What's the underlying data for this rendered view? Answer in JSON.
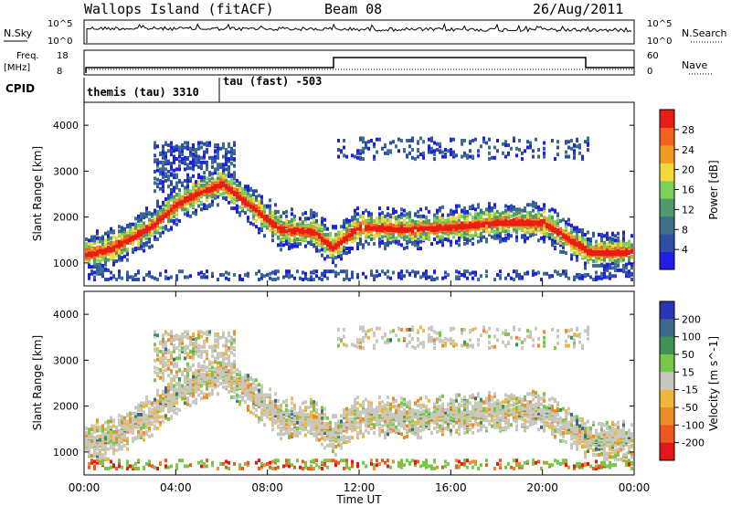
{
  "header": {
    "site": "Wallops Island (fitACF)",
    "beam": "Beam 08",
    "date": "26/Aug/2011"
  },
  "noise_panel": {
    "left_label": "N.Sky",
    "right_label": "N.Search",
    "left_ticks": [
      "10^5",
      "10^0"
    ],
    "right_ticks": [
      "10^5",
      "10^0"
    ],
    "right_line_style": "dotted"
  },
  "freq_panel": {
    "left_label_1": "Freq.",
    "left_label_2": "[MHz]",
    "right_label": "Nave",
    "left_ticks": [
      "18",
      "8"
    ],
    "right_ticks": [
      "60",
      "0"
    ],
    "cpid_label": "CPID",
    "cpid_modes": [
      {
        "label": "themis (tau) 3310",
        "start_hour": 0
      },
      {
        "label": "tau (fast) -503",
        "start_hour": 6
      }
    ]
  },
  "colors": {
    "power_scale": [
      "#1e1ee6",
      "#2d4fa8",
      "#3d6e8c",
      "#4f9a6e",
      "#7bd35a",
      "#f2d83a",
      "#f59a24",
      "#f2641e",
      "#e61e14"
    ],
    "velocity_scale": [
      "#2a35b8",
      "#3d6a8c",
      "#3f9254",
      "#76c84b",
      "#c8c8c0",
      "#f0b83a",
      "#ee8c2a",
      "#ec5a1e",
      "#e01818"
    ],
    "ground_scatter": "#c8c8c0"
  },
  "chart_data": [
    {
      "type": "heatmap",
      "name": "Power",
      "xlabel": "",
      "ylabel": "Slant Range [km]",
      "xlim_hours": [
        0,
        24
      ],
      "ylim": [
        500,
        4500
      ],
      "yticks": [
        1000,
        2000,
        3000,
        4000
      ],
      "colorbar": {
        "label": "Power [dB]",
        "unit": "dB",
        "range": [
          0,
          32
        ],
        "ticks": [
          4,
          8,
          12,
          16,
          20,
          24,
          28
        ]
      },
      "echo_band": {
        "hour": [
          0,
          1,
          2,
          3,
          4,
          5,
          6,
          8.5,
          10,
          10.8,
          12,
          14,
          16,
          18,
          20,
          22,
          24
        ],
        "range_km": [
          1150,
          1250,
          1500,
          1800,
          2250,
          2500,
          2700,
          1700,
          1650,
          1300,
          1750,
          1700,
          1750,
          1850,
          1850,
          1200,
          1200
        ]
      }
    },
    {
      "type": "heatmap",
      "name": "Velocity",
      "xlabel": "Time UT",
      "ylabel": "Slant Range [km]",
      "xlim_hours": [
        0,
        24
      ],
      "ylim": [
        500,
        4500
      ],
      "yticks": [
        1000,
        2000,
        3000,
        4000
      ],
      "xticks": [
        "00:00",
        "04:00",
        "08:00",
        "12:00",
        "16:00",
        "20:00",
        "00:00"
      ],
      "colorbar": {
        "label": "Velocity [m s^-1]",
        "unit": "m s^-1",
        "ticks": [
          200,
          100,
          50,
          15,
          -15,
          -50,
          -100,
          -200
        ]
      }
    }
  ]
}
